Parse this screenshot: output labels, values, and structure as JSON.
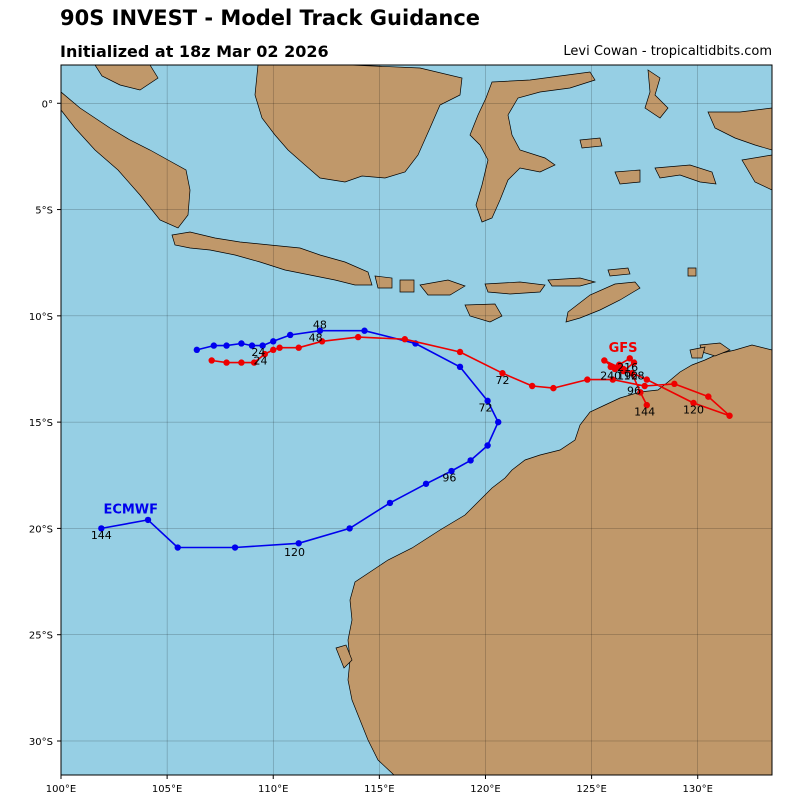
{
  "header": {
    "title": "90S INVEST - Model Track Guidance",
    "subtitle": "Initialized at 18z Mar 02 2026",
    "credit": "Levi Cowan - tropicaltidbits.com"
  },
  "colors": {
    "ocean": "#96cfe4",
    "land": "#c0986a",
    "ecmwf": "#0000ee",
    "gfs": "#ee0000"
  },
  "map": {
    "lon_range": [
      100.0,
      133.5
    ],
    "lat_range": [
      -31.6,
      1.8
    ],
    "lon_ticks": [
      {
        "value": 100,
        "label": "100°E"
      },
      {
        "value": 105,
        "label": "105°E"
      },
      {
        "value": 110,
        "label": "110°E"
      },
      {
        "value": 115,
        "label": "115°E"
      },
      {
        "value": 120,
        "label": "120°E"
      },
      {
        "value": 125,
        "label": "125°E"
      },
      {
        "value": 130,
        "label": "130°E"
      }
    ],
    "lat_ticks": [
      {
        "value": 0,
        "label": "0°"
      },
      {
        "value": -5,
        "label": "5°S"
      },
      {
        "value": -10,
        "label": "10°S"
      },
      {
        "value": -15,
        "label": "15°S"
      },
      {
        "value": -20,
        "label": "20°S"
      },
      {
        "value": -25,
        "label": "25°S"
      },
      {
        "value": -30,
        "label": "30°S"
      }
    ]
  },
  "chart_data": {
    "type": "line",
    "series": [
      {
        "name": "ECMWF",
        "color": "#0000ee",
        "points": [
          [
            106.4,
            -11.6
          ],
          [
            107.2,
            -11.4
          ],
          [
            107.8,
            -11.4
          ],
          [
            108.5,
            -11.3
          ],
          [
            109.0,
            -11.4
          ],
          [
            109.5,
            -11.4
          ],
          [
            110.0,
            -11.2
          ],
          [
            110.8,
            -10.9
          ],
          [
            112.2,
            -10.7
          ],
          [
            114.3,
            -10.7
          ],
          [
            116.7,
            -11.3
          ],
          [
            118.8,
            -12.4
          ],
          [
            120.1,
            -14.0
          ],
          [
            120.6,
            -15.0
          ],
          [
            120.1,
            -16.1
          ],
          [
            119.3,
            -16.8
          ],
          [
            118.4,
            -17.3
          ],
          [
            117.2,
            -17.9
          ],
          [
            115.5,
            -18.8
          ],
          [
            113.6,
            -20.0
          ],
          [
            111.2,
            -20.7
          ],
          [
            108.2,
            -20.9
          ],
          [
            105.5,
            -20.9
          ],
          [
            104.1,
            -19.6
          ],
          [
            101.9,
            -20.0
          ]
        ],
        "hour_labels": [
          {
            "text": "24",
            "lon": 109.3,
            "lat": -11.9
          },
          {
            "text": "48",
            "lon": 112.0,
            "lat": -11.2
          },
          {
            "text": "72",
            "lon": 120.0,
            "lat": -14.5
          },
          {
            "text": "96",
            "lon": 118.3,
            "lat": -17.8
          },
          {
            "text": "120",
            "lon": 111.0,
            "lat": -21.3
          },
          {
            "text": "144",
            "lon": 101.9,
            "lat": -20.5
          }
        ],
        "name_label": {
          "lon": 102.0,
          "lat": -19.3
        }
      },
      {
        "name": "GFS",
        "color": "#ee0000",
        "points": [
          [
            107.1,
            -12.1
          ],
          [
            107.8,
            -12.2
          ],
          [
            108.5,
            -12.2
          ],
          [
            109.1,
            -12.2
          ],
          [
            109.6,
            -11.8
          ],
          [
            110.0,
            -11.6
          ],
          [
            110.3,
            -11.5
          ],
          [
            111.2,
            -11.5
          ],
          [
            112.3,
            -11.2
          ],
          [
            114.0,
            -11.0
          ],
          [
            116.2,
            -11.1
          ],
          [
            118.8,
            -11.7
          ],
          [
            120.8,
            -12.7
          ],
          [
            122.2,
            -13.3
          ],
          [
            123.2,
            -13.4
          ],
          [
            124.8,
            -13.0
          ],
          [
            126.0,
            -13.0
          ],
          [
            127.5,
            -13.3
          ],
          [
            128.9,
            -13.2
          ],
          [
            130.5,
            -13.8
          ],
          [
            131.5,
            -14.7
          ],
          [
            129.8,
            -14.1
          ],
          [
            127.6,
            -13.0
          ],
          [
            126.5,
            -12.5
          ],
          [
            125.9,
            -12.4
          ],
          [
            126.3,
            -12.3
          ],
          [
            126.8,
            -12.0
          ],
          [
            127.0,
            -12.2
          ],
          [
            126.5,
            -12.6
          ],
          [
            126.1,
            -12.5
          ],
          [
            125.6,
            -12.1
          ],
          [
            126.9,
            -12.7
          ],
          [
            127.3,
            -13.6
          ],
          [
            127.6,
            -14.2
          ]
        ],
        "hour_labels": [
          {
            "text": "24",
            "lon": 109.4,
            "lat": -12.3
          },
          {
            "text": "48",
            "lon": 112.2,
            "lat": -10.6
          },
          {
            "text": "72",
            "lon": 120.8,
            "lat": -13.2
          },
          {
            "text": "96",
            "lon": 127.0,
            "lat": -13.7
          },
          {
            "text": "120",
            "lon": 129.8,
            "lat": -14.6
          },
          {
            "text": "144",
            "lon": 127.5,
            "lat": -14.7
          },
          {
            "text": "168",
            "lon": 127.0,
            "lat": -13.0
          },
          {
            "text": "192",
            "lon": 126.7,
            "lat": -13.0
          },
          {
            "text": "216",
            "lon": 126.7,
            "lat": -12.6
          },
          {
            "text": "240",
            "lon": 125.9,
            "lat": -13.0
          }
        ],
        "name_label": {
          "lon": 125.8,
          "lat": -11.7
        }
      }
    ],
    "xlim": [
      100.0,
      133.5
    ],
    "ylim": [
      -31.6,
      1.8
    ],
    "grid": true
  }
}
